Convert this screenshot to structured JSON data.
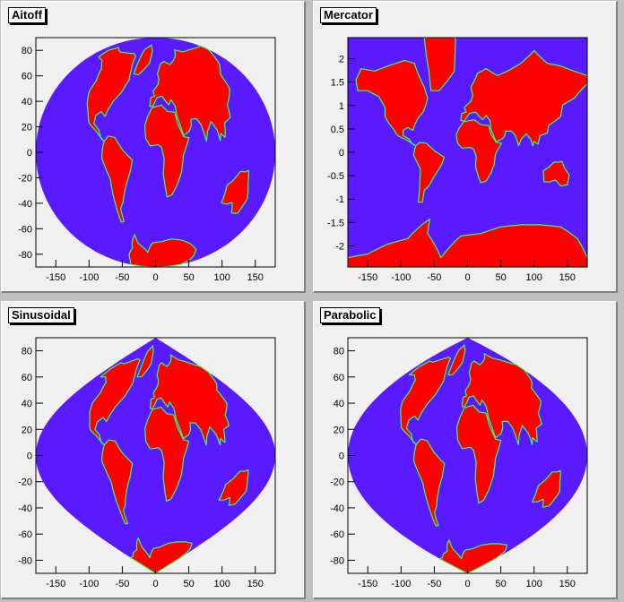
{
  "colors": {
    "ocean": "#5a1aff",
    "land": "#ff0000",
    "coast": "#33ff66",
    "coast2": "#ffd700",
    "frame": "#000000",
    "pad": "#f0f0f0"
  },
  "chart_data": [
    {
      "type": "heatmap",
      "title": "Aitoff",
      "projection": "aitoff",
      "xlim": [
        -180,
        180
      ],
      "ylim": [
        -90,
        90
      ],
      "xticks": [
        "-150",
        "-100",
        "-50",
        "0",
        "50",
        "100",
        "150"
      ],
      "xtick_values": [
        -150,
        -100,
        -50,
        0,
        50,
        100,
        150
      ],
      "yticks": [
        "80",
        "60",
        "40",
        "20",
        "0",
        "-20",
        "-40",
        "-60",
        "-80"
      ],
      "ytick_values": [
        80,
        60,
        40,
        20,
        0,
        -20,
        -40,
        -60,
        -80
      ]
    },
    {
      "type": "heatmap",
      "title": "Mercator",
      "projection": "mercator",
      "xlim": [
        -180,
        180
      ],
      "ylim": [
        -2.45,
        2.45
      ],
      "xticks": [
        "-150",
        "-100",
        "-50",
        "0",
        "50",
        "100",
        "150"
      ],
      "xtick_values": [
        -150,
        -100,
        -50,
        0,
        50,
        100,
        150
      ],
      "yticks": [
        "2",
        "1.5",
        "1",
        "0.5",
        "0",
        "-0.5",
        "-1",
        "-1.5",
        "-2"
      ],
      "ytick_values": [
        2,
        1.5,
        1,
        0.5,
        0,
        -0.5,
        -1,
        -1.5,
        -2
      ]
    },
    {
      "type": "heatmap",
      "title": "Sinusoidal",
      "projection": "sinusoidal",
      "xlim": [
        -180,
        180
      ],
      "ylim": [
        -90,
        90
      ],
      "xticks": [
        "-150",
        "-100",
        "-50",
        "0",
        "50",
        "100",
        "150"
      ],
      "xtick_values": [
        -150,
        -100,
        -50,
        0,
        50,
        100,
        150
      ],
      "yticks": [
        "80",
        "60",
        "40",
        "20",
        "0",
        "-20",
        "-40",
        "-60",
        "-80"
      ],
      "ytick_values": [
        80,
        60,
        40,
        20,
        0,
        -20,
        -40,
        -60,
        -80
      ]
    },
    {
      "type": "heatmap",
      "title": "Parabolic",
      "projection": "parabolic",
      "xlim": [
        -180,
        180
      ],
      "ylim": [
        -90,
        90
      ],
      "xticks": [
        "-150",
        "-100",
        "-50",
        "0",
        "50",
        "100",
        "150"
      ],
      "xtick_values": [
        -150,
        -100,
        -50,
        0,
        50,
        100,
        150
      ],
      "yticks": [
        "80",
        "60",
        "40",
        "20",
        "0",
        "-20",
        "-40",
        "-60",
        "-80"
      ],
      "ytick_values": [
        80,
        60,
        40,
        20,
        0,
        -20,
        -40,
        -60,
        -80
      ]
    }
  ]
}
